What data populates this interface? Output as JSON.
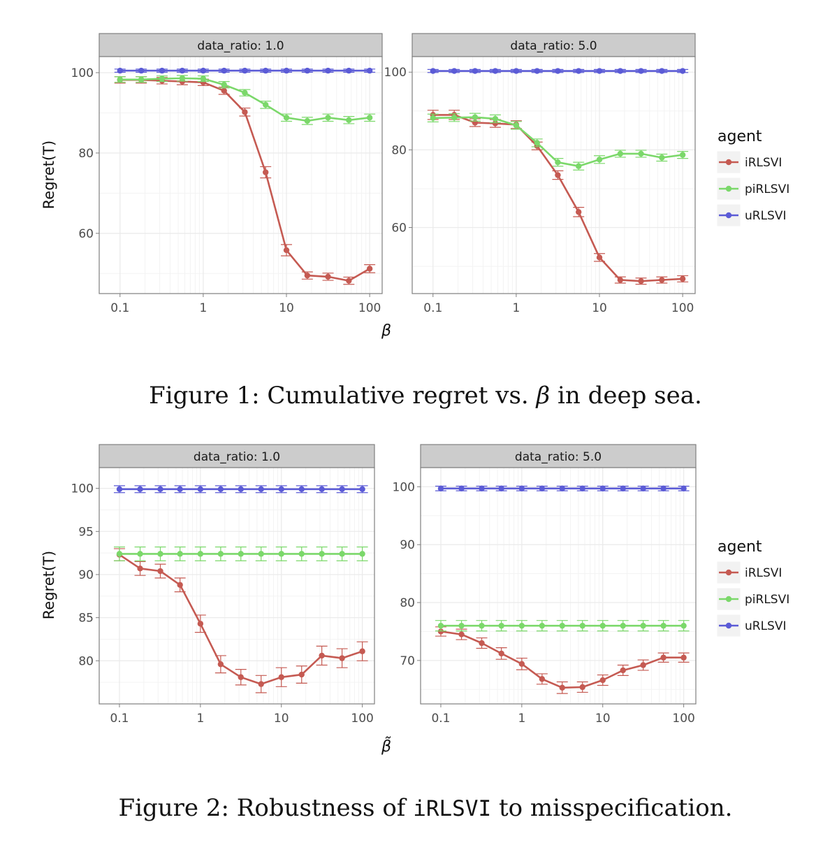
{
  "figure1": {
    "caption_prefix": "Figure 1:",
    "caption_text_a": "Cumulative regret vs.",
    "caption_math": "β",
    "caption_text_b": "in deep sea.",
    "xlabel": "β",
    "ylabel": "Regret(T)"
  },
  "figure2": {
    "caption_prefix": "Figure 2:",
    "caption_text_a": "Robustness of",
    "caption_code": "iRLSVI",
    "caption_text_b": "to misspecification.",
    "xlabel": "β̃",
    "ylabel": "Regret(T)"
  },
  "legend": {
    "title": "agent",
    "entries": [
      {
        "name": "iRLSVI",
        "color": "#C55A52"
      },
      {
        "name": "piRLSVI",
        "color": "#7BD86A"
      },
      {
        "name": "uRLSVI",
        "color": "#5B5BD6"
      }
    ]
  },
  "colors": {
    "panel_bg": "#FFFFFF",
    "strip_bg": "#CCCCCC",
    "grid": "#EBEBEB",
    "axis_text": "#4D4D4D"
  },
  "chart_data": [
    {
      "type": "line",
      "figure": "Figure 1",
      "panel_title": "data_ratio: 1.0",
      "xscale": "log",
      "x": [
        0.1,
        0.18,
        0.32,
        0.56,
        1,
        1.78,
        3.16,
        5.62,
        10,
        17.8,
        31.6,
        56.2,
        100
      ],
      "xticks": [
        0.1,
        1,
        10,
        100
      ],
      "xtick_labels": [
        "0.1",
        "1",
        "10",
        "100"
      ],
      "ylim": [
        45,
        104
      ],
      "yticks": [
        60,
        80,
        100
      ],
      "ytick_labels": [
        "60",
        "80",
        "100"
      ],
      "series": [
        {
          "name": "iRLSVI",
          "values": [
            98.2,
            98.2,
            98.0,
            97.8,
            97.6,
            95.5,
            90.2,
            75.2,
            55.8,
            49.5,
            49.2,
            48.2,
            51.2
          ],
          "err": [
            0.8,
            0.8,
            0.8,
            0.8,
            0.8,
            0.9,
            1.0,
            1.4,
            1.4,
            0.9,
            0.9,
            0.9,
            1.0
          ]
        },
        {
          "name": "piRLSVI",
          "values": [
            98.3,
            98.3,
            98.5,
            98.6,
            98.5,
            97.0,
            95.0,
            92.0,
            88.8,
            88.0,
            88.8,
            88.2,
            88.8
          ],
          "err": [
            0.7,
            0.7,
            0.7,
            0.7,
            0.7,
            0.8,
            0.8,
            0.9,
            0.9,
            0.9,
            0.9,
            0.9,
            0.9
          ]
        },
        {
          "name": "uRLSVI",
          "values": [
            100.5,
            100.5,
            100.5,
            100.5,
            100.5,
            100.5,
            100.5,
            100.5,
            100.5,
            100.5,
            100.5,
            100.5,
            100.5
          ],
          "err": [
            0.4,
            0.4,
            0.4,
            0.4,
            0.4,
            0.4,
            0.4,
            0.4,
            0.4,
            0.4,
            0.4,
            0.4,
            0.4
          ]
        }
      ]
    },
    {
      "type": "line",
      "figure": "Figure 1",
      "panel_title": "data_ratio: 5.0",
      "xscale": "log",
      "x": [
        0.1,
        0.18,
        0.32,
        0.56,
        1,
        1.78,
        3.16,
        5.62,
        10,
        17.8,
        31.6,
        56.2,
        100
      ],
      "xticks": [
        0.1,
        1,
        10,
        100
      ],
      "xtick_labels": [
        "0.1",
        "1",
        "10",
        "100"
      ],
      "ylim": [
        43,
        104
      ],
      "yticks": [
        60,
        80,
        100
      ],
      "ytick_labels": [
        "60",
        "80",
        "100"
      ],
      "series": [
        {
          "name": "iRLSVI",
          "values": [
            89.0,
            89.0,
            87.0,
            86.8,
            86.5,
            81.0,
            73.5,
            64.0,
            52.3,
            46.5,
            46.2,
            46.5,
            46.8
          ],
          "err": [
            1.2,
            1.2,
            1.0,
            1.0,
            1.0,
            1.0,
            1.1,
            1.2,
            1.0,
            0.8,
            0.8,
            0.8,
            0.8
          ]
        },
        {
          "name": "piRLSVI",
          "values": [
            88.2,
            88.3,
            88.4,
            88.0,
            86.3,
            81.8,
            76.8,
            75.8,
            77.5,
            79.0,
            79.0,
            78.0,
            78.7
          ],
          "err": [
            1.0,
            1.0,
            1.0,
            1.0,
            1.0,
            1.0,
            1.0,
            1.0,
            1.0,
            0.9,
            0.9,
            0.9,
            0.9
          ]
        },
        {
          "name": "uRLSVI",
          "values": [
            100.3,
            100.3,
            100.3,
            100.3,
            100.3,
            100.3,
            100.3,
            100.3,
            100.3,
            100.3,
            100.3,
            100.3,
            100.3
          ],
          "err": [
            0.4,
            0.4,
            0.4,
            0.4,
            0.4,
            0.4,
            0.4,
            0.4,
            0.4,
            0.4,
            0.4,
            0.4,
            0.4
          ]
        }
      ]
    },
    {
      "type": "line",
      "figure": "Figure 2",
      "panel_title": "data_ratio: 1.0",
      "xscale": "log",
      "x": [
        0.1,
        0.18,
        0.32,
        0.56,
        1,
        1.78,
        3.16,
        5.62,
        10,
        17.8,
        31.6,
        56.2,
        100
      ],
      "xticks": [
        0.1,
        1,
        10,
        100
      ],
      "xtick_labels": [
        "0.1",
        "1",
        "10",
        "100"
      ],
      "ylim": [
        75.0,
        102.4
      ],
      "yticks": [
        80,
        85,
        90,
        95,
        100
      ],
      "ytick_labels": [
        "80",
        "85",
        "90",
        "95",
        "100"
      ],
      "series": [
        {
          "name": "iRLSVI",
          "values": [
            92.3,
            90.7,
            90.4,
            88.8,
            84.3,
            79.6,
            78.1,
            77.3,
            78.1,
            78.4,
            80.6,
            80.3,
            81.1
          ],
          "err": [
            0.7,
            0.8,
            0.8,
            0.8,
            1.0,
            1.0,
            0.9,
            1.0,
            1.1,
            1.0,
            1.1,
            1.1,
            1.1
          ]
        },
        {
          "name": "piRLSVI",
          "values": [
            92.4,
            92.4,
            92.4,
            92.4,
            92.4,
            92.4,
            92.4,
            92.4,
            92.4,
            92.4,
            92.4,
            92.4,
            92.4
          ],
          "err": [
            0.8,
            0.8,
            0.8,
            0.8,
            0.8,
            0.8,
            0.8,
            0.8,
            0.8,
            0.8,
            0.8,
            0.8,
            0.8
          ]
        },
        {
          "name": "uRLSVI",
          "values": [
            99.9,
            99.9,
            99.9,
            99.9,
            99.9,
            99.9,
            99.9,
            99.9,
            99.9,
            99.9,
            99.9,
            99.9,
            99.9
          ],
          "err": [
            0.4,
            0.4,
            0.4,
            0.4,
            0.4,
            0.4,
            0.4,
            0.4,
            0.4,
            0.4,
            0.4,
            0.4,
            0.4
          ]
        }
      ]
    },
    {
      "type": "line",
      "figure": "Figure 2",
      "panel_title": "data_ratio: 5.0",
      "xscale": "log",
      "x": [
        0.1,
        0.18,
        0.32,
        0.56,
        1,
        1.78,
        3.16,
        5.62,
        10,
        17.8,
        31.6,
        56.2,
        100
      ],
      "xticks": [
        0.1,
        1,
        10,
        100
      ],
      "xtick_labels": [
        "0.1",
        "1",
        "10",
        "100"
      ],
      "ylim": [
        62.5,
        103.3
      ],
      "yticks": [
        70,
        80,
        90,
        100
      ],
      "ytick_labels": [
        "70",
        "80",
        "90",
        "100"
      ],
      "series": [
        {
          "name": "iRLSVI",
          "values": [
            75.0,
            74.5,
            73.0,
            71.2,
            69.4,
            66.8,
            65.3,
            65.4,
            66.6,
            68.3,
            69.2,
            70.5,
            70.5
          ],
          "err": [
            0.8,
            0.9,
            0.9,
            1.0,
            1.0,
            0.9,
            1.0,
            0.9,
            0.9,
            0.9,
            0.9,
            0.8,
            0.8
          ]
        },
        {
          "name": "piRLSVI",
          "values": [
            76.0,
            76.0,
            76.0,
            76.0,
            76.0,
            76.0,
            76.0,
            76.0,
            76.0,
            76.0,
            76.0,
            76.0,
            76.0
          ],
          "err": [
            0.9,
            0.9,
            0.9,
            0.9,
            0.9,
            0.9,
            0.9,
            0.9,
            0.9,
            0.9,
            0.9,
            0.9,
            0.9
          ]
        },
        {
          "name": "uRLSVI",
          "values": [
            99.7,
            99.7,
            99.7,
            99.7,
            99.7,
            99.7,
            99.7,
            99.7,
            99.7,
            99.7,
            99.7,
            99.7,
            99.7
          ],
          "err": [
            0.4,
            0.4,
            0.4,
            0.4,
            0.4,
            0.4,
            0.4,
            0.4,
            0.4,
            0.4,
            0.4,
            0.4,
            0.4
          ]
        }
      ]
    }
  ]
}
